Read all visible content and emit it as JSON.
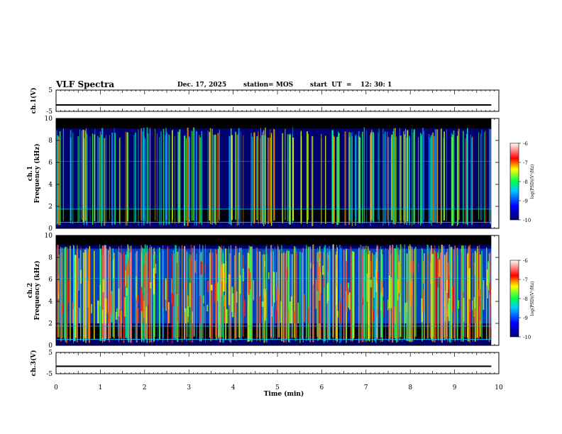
{
  "header": {
    "title": "VLF Spectra",
    "date": "Dec. 17, 2025",
    "station": "station= MOS",
    "start_label": "start  UT  =",
    "start_time": "12: 30: 1"
  },
  "chart_data": [
    {
      "type": "line",
      "panel": "ch1-waveform",
      "ylabel": "ch.1(V)",
      "ylim": [
        -5,
        5
      ],
      "y_ticks": [
        "5",
        "-5"
      ],
      "x": [
        0,
        9.83
      ],
      "values": [
        -2,
        -2
      ]
    },
    {
      "type": "heatmap",
      "panel": "ch1-spectrogram",
      "ylabel": "ch.1\nFrequency  (kHz)",
      "ylim": [
        0,
        10
      ],
      "y_ticks": [
        "0",
        "2",
        "4",
        "6",
        "8",
        "10"
      ],
      "xlim": [
        0,
        10
      ],
      "data_extent_min": 9.83,
      "colorbar": {
        "label": "log(PSD)(V²/Hz)",
        "range": [
          -10,
          -6
        ],
        "ticks": [
          "-6",
          "-7",
          "-8",
          "-9",
          "-10"
        ]
      }
    },
    {
      "type": "heatmap",
      "panel": "ch2-spectrogram",
      "ylabel": "ch.2\nFrequency  (kHz)",
      "ylim": [
        0,
        10
      ],
      "y_ticks": [
        "0",
        "2",
        "4",
        "6",
        "8",
        "10"
      ],
      "xlim": [
        0,
        10
      ],
      "data_extent_min": 9.83,
      "colorbar": {
        "label": "log(PSD)(V²/Hz)",
        "range": [
          -10,
          -6
        ],
        "ticks": [
          "-6",
          "-7",
          "-8",
          "-9",
          "-10"
        ]
      }
    },
    {
      "type": "line",
      "panel": "ch3-waveform",
      "ylabel": "ch.3(V)",
      "ylim": [
        -5,
        5
      ],
      "y_ticks": [
        "5",
        "-5"
      ],
      "x": [
        0,
        9.83
      ],
      "values": [
        -1.5,
        -1.5
      ]
    }
  ],
  "x_axis": {
    "label": "Time  (min)",
    "ticks": [
      "0",
      "1",
      "2",
      "3",
      "4",
      "5",
      "6",
      "7",
      "8",
      "9",
      "10"
    ]
  },
  "colors": {
    "background": "#ffffff",
    "axes": "#000000",
    "colormap": [
      "#000000",
      "#00006e",
      "#0000ff",
      "#00c8ff",
      "#00ff50",
      "#ffff00",
      "#ff0000",
      "#ffffff"
    ]
  }
}
